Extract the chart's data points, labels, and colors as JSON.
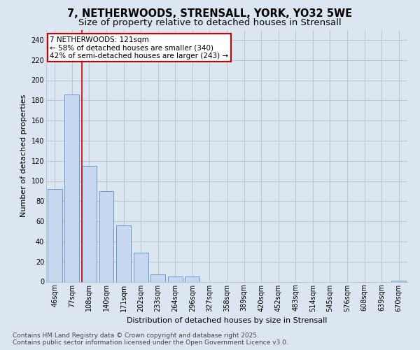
{
  "title_line1": "7, NETHERWOODS, STRENSALL, YORK, YO32 5WE",
  "title_line2": "Size of property relative to detached houses in Strensall",
  "xlabel": "Distribution of detached houses by size in Strensall",
  "ylabel": "Number of detached properties",
  "categories": [
    "46sqm",
    "77sqm",
    "108sqm",
    "140sqm",
    "171sqm",
    "202sqm",
    "233sqm",
    "264sqm",
    "296sqm",
    "327sqm",
    "358sqm",
    "389sqm",
    "420sqm",
    "452sqm",
    "483sqm",
    "514sqm",
    "545sqm",
    "576sqm",
    "608sqm",
    "639sqm",
    "670sqm"
  ],
  "values": [
    92,
    186,
    115,
    90,
    56,
    29,
    7,
    5,
    5,
    0,
    0,
    0,
    0,
    0,
    0,
    0,
    0,
    0,
    0,
    0,
    1
  ],
  "bar_color": "#c5d8ef",
  "bar_edge_color": "#6699cc",
  "bar_linewidth": 0.7,
  "red_line_x": 2,
  "highlight_color": "#cc0000",
  "annotation_text": "7 NETHERWOODS: 121sqm\n← 58% of detached houses are smaller (340)\n42% of semi-detached houses are larger (243) →",
  "annotation_box_edgecolor": "#cc0000",
  "ylim": [
    0,
    250
  ],
  "yticks": [
    0,
    20,
    40,
    60,
    80,
    100,
    120,
    140,
    160,
    180,
    200,
    220,
    240
  ],
  "grid_color": "#b0bfd0",
  "bg_color": "#dce6f1",
  "footer_line1": "Contains HM Land Registry data © Crown copyright and database right 2025.",
  "footer_line2": "Contains public sector information licensed under the Open Government Licence v3.0.",
  "title_fontsize": 10.5,
  "subtitle_fontsize": 9.5,
  "axis_label_fontsize": 8,
  "tick_fontsize": 7,
  "footer_fontsize": 6.5,
  "annotation_fontsize": 7.5
}
